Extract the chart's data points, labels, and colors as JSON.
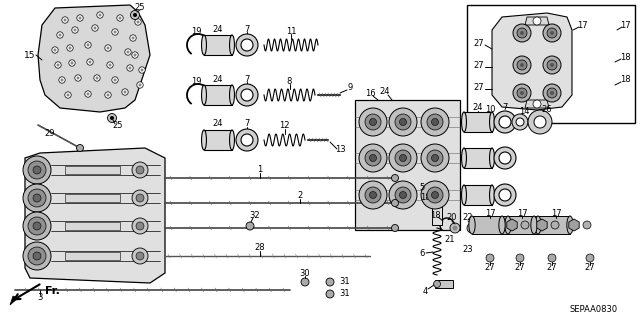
{
  "fig_width": 6.4,
  "fig_height": 3.19,
  "dpi": 100,
  "bg_color": "#ffffff",
  "diagram_code": "SEPAA0830",
  "fr_label": "Fr.",
  "line_color": "#1a1a1a",
  "part_color": "#c8c8c8",
  "dark_color": "#555555"
}
